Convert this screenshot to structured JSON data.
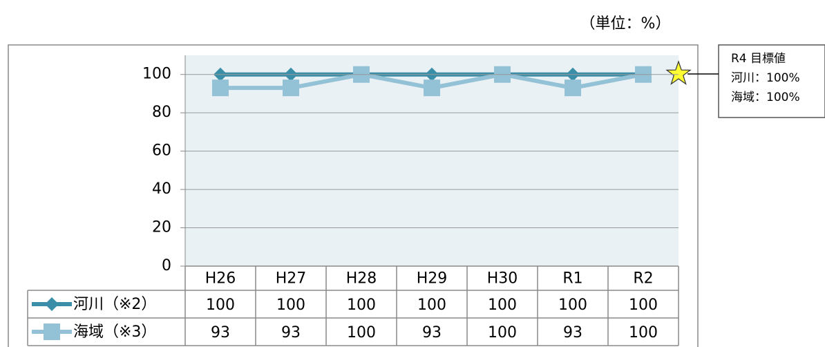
{
  "chart_data": {
    "type": "line",
    "unit_label": "（単位：%）",
    "categories": [
      "H26",
      "H27",
      "H28",
      "H29",
      "H30",
      "R1",
      "R2"
    ],
    "series": [
      {
        "name": "河川（※2）",
        "color": "#3a8ea8",
        "marker": "diamond",
        "values": [
          100,
          100,
          100,
          100,
          100,
          100,
          100
        ]
      },
      {
        "name": "海域（※3）",
        "color": "#93c1d5",
        "marker": "square",
        "values": [
          93,
          93,
          100,
          93,
          100,
          93,
          100
        ]
      }
    ],
    "ylim": [
      0,
      110
    ],
    "yticks": [
      0,
      20,
      40,
      60,
      80,
      100
    ],
    "grid": true,
    "annotation": {
      "title": "R4 目標値",
      "lines": [
        "河川：100%",
        "海域：100%"
      ]
    }
  }
}
